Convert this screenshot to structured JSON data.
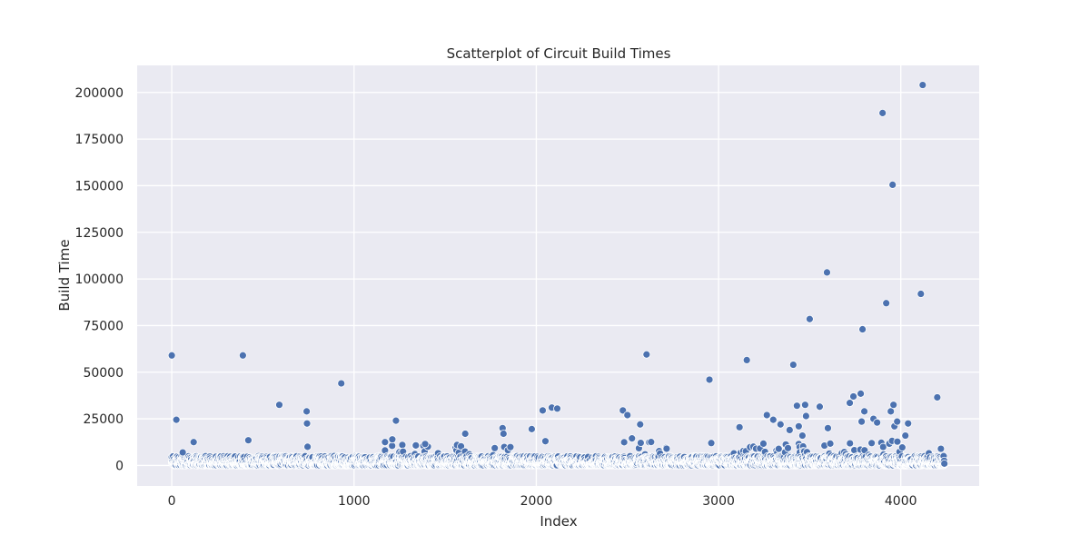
{
  "chart_data": {
    "type": "scatter",
    "title": "Scatterplot of Circuit Build Times",
    "xlabel": "Index",
    "ylabel": "Build Time",
    "xlim": [
      -190,
      4430
    ],
    "ylim": [
      -11000,
      214500
    ],
    "x_ticks": [
      0,
      1000,
      2000,
      3000,
      4000
    ],
    "y_ticks": [
      0,
      25000,
      50000,
      75000,
      100000,
      125000,
      150000,
      175000,
      200000
    ],
    "grid": true,
    "marker_color": "#4c72b0",
    "background_color": "#eaeaf2",
    "outliers": {
      "x": [
        0,
        25,
        60,
        120,
        390,
        420,
        590,
        740,
        742,
        745,
        930,
        1170,
        1210,
        1230,
        1390,
        1610,
        1815,
        1820,
        1975,
        2035,
        2050,
        2085,
        2115,
        2475,
        2500,
        2525,
        2570,
        2605,
        2950,
        2960,
        3115,
        3155,
        3265,
        3300,
        3340,
        3390,
        3410,
        3430,
        3440,
        3460,
        3475,
        3480,
        3500,
        3555,
        3595,
        3600,
        3720,
        3740,
        3780,
        3785,
        3790,
        3800,
        3850,
        3870,
        3900,
        3920,
        3945,
        3955,
        3960,
        3965,
        3980,
        4025,
        4040,
        4110,
        4120,
        4200
      ],
      "y": [
        59000,
        24500,
        7000,
        12500,
        59000,
        13500,
        32500,
        29000,
        22500,
        10000,
        44000,
        12500,
        14000,
        24000,
        11500,
        17000,
        20000,
        17000,
        19500,
        29500,
        13000,
        31000,
        30500,
        29500,
        27000,
        14500,
        22000,
        59500,
        46000,
        12000,
        20500,
        56500,
        27000,
        24500,
        22000,
        19000,
        54000,
        32000,
        21000,
        16000,
        32500,
        26500,
        78500,
        31500,
        103500,
        20000,
        33500,
        37000,
        38500,
        23500,
        73000,
        29000,
        25000,
        23000,
        189000,
        87000,
        29000,
        150500,
        32500,
        21000,
        23500,
        16000,
        22500,
        92000,
        204000,
        36500
      ]
    },
    "bulk_points": {
      "count": 4240,
      "x_range": [
        0,
        4239
      ],
      "baseline_upper_bound": 5000,
      "bursts": [
        {
          "x_start": 1150,
          "x_end": 1900,
          "upper_bound": 11000
        },
        {
          "x_start": 2450,
          "x_end": 2750,
          "upper_bound": 13000
        },
        {
          "x_start": 3000,
          "x_end": 3700,
          "upper_bound": 12000
        },
        {
          "x_start": 3700,
          "x_end": 4239,
          "upper_bound": 14000
        }
      ],
      "last_points": {
        "x": [
          4235,
          4238,
          4239
        ],
        "y": [
          5000,
          2500,
          1000
        ]
      }
    }
  }
}
